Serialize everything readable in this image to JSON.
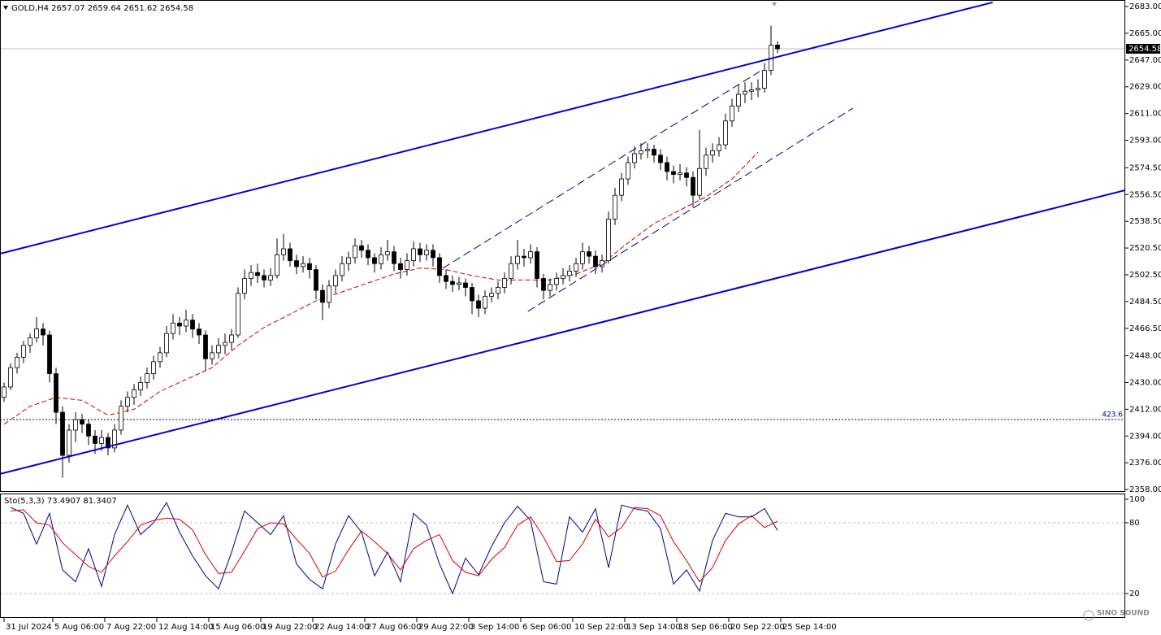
{
  "chart_data": [
    {
      "type": "candlestick",
      "symbol": "GOLD,H4",
      "watermark": "SINO SOUND",
      "bull_color": "#ffffff",
      "bear_color": "#000000",
      "wick_color": "#000000",
      "xlim": [
        -0.625,
        172.5
      ],
      "xticks": [
        {
          "value": 0,
          "label": "31 Jul 2024"
        },
        {
          "value": 7.5,
          "label": "5 Aug 06:00"
        },
        {
          "value": 15.5,
          "label": "7 Aug 22:00"
        },
        {
          "value": 23.5,
          "label": "12 Aug 14:00"
        },
        {
          "value": 31.5,
          "label": "15 Aug 06:00"
        },
        {
          "value": 39.5,
          "label": "19 Aug 22:00"
        },
        {
          "value": 47.5,
          "label": "22 Aug 14:00"
        },
        {
          "value": 55.5,
          "label": "27 Aug 06:00"
        },
        {
          "value": 63.5,
          "label": "29 Aug 22:00"
        },
        {
          "value": 71.5,
          "label": "3 Sep 14:00"
        },
        {
          "value": 79.5,
          "label": "6 Sep 06:00"
        },
        {
          "value": 87.5,
          "label": "10 Sep 22:00"
        },
        {
          "value": 95.5,
          "label": "13 Sep 14:00"
        },
        {
          "value": 103.5,
          "label": "18 Sep 06:00"
        },
        {
          "value": 111.5,
          "label": "20 Sep 22:00"
        },
        {
          "value": 119.5,
          "label": "25 Sep 14:00"
        }
      ],
      "ylim": [
        2356.4,
        2687.4
      ],
      "yticks": [
        {
          "value": 2683,
          "label": "2683.00"
        },
        {
          "value": 2665,
          "label": "2665.00"
        },
        {
          "value": 2647,
          "label": "2647.00"
        },
        {
          "value": 2629,
          "label": "2629.00"
        },
        {
          "value": 2611,
          "label": "2611.00"
        },
        {
          "value": 2593,
          "label": "2593.00"
        },
        {
          "value": 2574.5,
          "label": "2574.50"
        },
        {
          "value": 2556.5,
          "label": "2556.50"
        },
        {
          "value": 2538.5,
          "label": "2538.50"
        },
        {
          "value": 2520.5,
          "label": "2520.50"
        },
        {
          "value": 2502.5,
          "label": "2502.50"
        },
        {
          "value": 2484.5,
          "label": "2484.50"
        },
        {
          "value": 2466.5,
          "label": "2466.50"
        },
        {
          "value": 2448,
          "label": "2448.00"
        },
        {
          "value": 2430,
          "label": "2430.00"
        },
        {
          "value": 2412,
          "label": "2412.00"
        },
        {
          "value": 2394,
          "label": "2394.00"
        },
        {
          "value": 2376,
          "label": "2376.00"
        },
        {
          "value": 2358,
          "label": "2358.00"
        }
      ],
      "candles": [
        [
          2420,
          2430,
          2417,
          2427
        ],
        [
          2427,
          2443,
          2425,
          2440
        ],
        [
          2440,
          2450,
          2436,
          2447
        ],
        [
          2447,
          2458,
          2443,
          2455
        ],
        [
          2455,
          2463,
          2450,
          2460
        ],
        [
          2460,
          2474,
          2457,
          2466
        ],
        [
          2466,
          2470,
          2455,
          2462
        ],
        [
          2462,
          2465,
          2430,
          2436
        ],
        [
          2436,
          2440,
          2402,
          2410
        ],
        [
          2410,
          2414,
          2366,
          2381
        ],
        [
          2381,
          2402,
          2376,
          2398
        ],
        [
          2398,
          2410,
          2390,
          2405
        ],
        [
          2405,
          2409,
          2396,
          2402
        ],
        [
          2402,
          2405,
          2388,
          2394
        ],
        [
          2394,
          2398,
          2382,
          2389
        ],
        [
          2389,
          2398,
          2384,
          2393
        ],
        [
          2393,
          2396,
          2381,
          2386
        ],
        [
          2386,
          2402,
          2383,
          2398
        ],
        [
          2398,
          2418,
          2395,
          2414
        ],
        [
          2414,
          2424,
          2410,
          2420
        ],
        [
          2420,
          2429,
          2415,
          2425
        ],
        [
          2425,
          2434,
          2421,
          2430
        ],
        [
          2430,
          2440,
          2426,
          2436
        ],
        [
          2436,
          2448,
          2432,
          2444
        ],
        [
          2444,
          2454,
          2440,
          2450
        ],
        [
          2450,
          2468,
          2447,
          2463
        ],
        [
          2463,
          2476,
          2459,
          2470
        ],
        [
          2470,
          2474,
          2462,
          2468
        ],
        [
          2468,
          2479,
          2464,
          2472
        ],
        [
          2472,
          2476,
          2460,
          2466
        ],
        [
          2466,
          2470,
          2456,
          2462
        ],
        [
          2462,
          2465,
          2438,
          2446
        ],
        [
          2446,
          2455,
          2442,
          2450
        ],
        [
          2450,
          2460,
          2446,
          2455
        ],
        [
          2455,
          2463,
          2449,
          2457
        ],
        [
          2457,
          2466,
          2452,
          2462
        ],
        [
          2462,
          2494,
          2460,
          2490
        ],
        [
          2490,
          2506,
          2486,
          2500
        ],
        [
          2500,
          2509,
          2495,
          2504
        ],
        [
          2504,
          2510,
          2497,
          2502
        ],
        [
          2502,
          2506,
          2494,
          2499
        ],
        [
          2499,
          2507,
          2495,
          2502
        ],
        [
          2502,
          2527,
          2500,
          2516
        ],
        [
          2516,
          2530,
          2512,
          2520
        ],
        [
          2520,
          2524,
          2508,
          2512
        ],
        [
          2512,
          2516,
          2503,
          2508
        ],
        [
          2508,
          2515,
          2504,
          2510
        ],
        [
          2510,
          2514,
          2500,
          2506
        ],
        [
          2506,
          2509,
          2486,
          2492
        ],
        [
          2492,
          2496,
          2472,
          2484
        ],
        [
          2484,
          2499,
          2480,
          2495
        ],
        [
          2495,
          2506,
          2490,
          2502
        ],
        [
          2502,
          2515,
          2498,
          2510
        ],
        [
          2510,
          2518,
          2505,
          2514
        ],
        [
          2514,
          2527,
          2510,
          2522
        ],
        [
          2522,
          2526,
          2514,
          2519
        ],
        [
          2519,
          2523,
          2509,
          2514
        ],
        [
          2514,
          2517,
          2504,
          2510
        ],
        [
          2510,
          2521,
          2506,
          2516
        ],
        [
          2516,
          2526,
          2512,
          2518
        ],
        [
          2518,
          2522,
          2505,
          2510
        ],
        [
          2510,
          2514,
          2500,
          2506
        ],
        [
          2506,
          2517,
          2502,
          2512
        ],
        [
          2512,
          2525,
          2508,
          2520
        ],
        [
          2520,
          2524,
          2511,
          2516
        ],
        [
          2516,
          2523,
          2512,
          2519
        ],
        [
          2519,
          2523,
          2508,
          2514
        ],
        [
          2514,
          2517,
          2497,
          2502
        ],
        [
          2502,
          2506,
          2493,
          2498
        ],
        [
          2498,
          2502,
          2491,
          2496
        ],
        [
          2496,
          2501,
          2492,
          2497
        ],
        [
          2497,
          2500,
          2488,
          2494
        ],
        [
          2494,
          2497,
          2476,
          2485
        ],
        [
          2485,
          2489,
          2474,
          2480
        ],
        [
          2480,
          2492,
          2476,
          2488
        ],
        [
          2488,
          2494,
          2484,
          2490
        ],
        [
          2490,
          2498,
          2486,
          2494
        ],
        [
          2494,
          2504,
          2490,
          2500
        ],
        [
          2500,
          2515,
          2496,
          2510
        ],
        [
          2510,
          2526,
          2506,
          2515
        ],
        [
          2515,
          2520,
          2508,
          2514
        ],
        [
          2514,
          2523,
          2510,
          2518
        ],
        [
          2518,
          2521,
          2494,
          2500
        ],
        [
          2500,
          2503,
          2486,
          2492
        ],
        [
          2492,
          2500,
          2488,
          2496
        ],
        [
          2496,
          2504,
          2492,
          2500
        ],
        [
          2500,
          2507,
          2496,
          2502
        ],
        [
          2502,
          2509,
          2498,
          2505
        ],
        [
          2505,
          2514,
          2501,
          2510
        ],
        [
          2510,
          2524,
          2506,
          2518
        ],
        [
          2518,
          2522,
          2510,
          2515
        ],
        [
          2515,
          2519,
          2503,
          2508
        ],
        [
          2508,
          2516,
          2504,
          2512
        ],
        [
          2512,
          2545,
          2510,
          2540
        ],
        [
          2540,
          2561,
          2536,
          2556
        ],
        [
          2556,
          2571,
          2552,
          2567
        ],
        [
          2567,
          2582,
          2563,
          2578
        ],
        [
          2578,
          2589,
          2574,
          2584
        ],
        [
          2584,
          2591,
          2580,
          2586
        ],
        [
          2586,
          2591,
          2581,
          2587
        ],
        [
          2587,
          2590,
          2578,
          2583
        ],
        [
          2583,
          2587,
          2573,
          2578
        ],
        [
          2578,
          2582,
          2566,
          2572
        ],
        [
          2572,
          2576,
          2564,
          2570
        ],
        [
          2570,
          2577,
          2566,
          2571
        ],
        [
          2571,
          2575,
          2562,
          2568
        ],
        [
          2568,
          2572,
          2548,
          2556
        ],
        [
          2556,
          2600,
          2553,
          2574
        ],
        [
          2574,
          2588,
          2569,
          2583
        ],
        [
          2583,
          2591,
          2578,
          2586
        ],
        [
          2586,
          2595,
          2582,
          2590
        ],
        [
          2590,
          2611,
          2587,
          2606
        ],
        [
          2606,
          2621,
          2602,
          2616
        ],
        [
          2616,
          2630,
          2612,
          2624
        ],
        [
          2624,
          2632,
          2618,
          2626
        ],
        [
          2626,
          2632,
          2620,
          2627
        ],
        [
          2627,
          2634,
          2622,
          2628
        ],
        [
          2628,
          2645,
          2625,
          2640
        ],
        [
          2640,
          2670,
          2637,
          2657
        ],
        [
          2657.07,
          2659.64,
          2651.62,
          2654.58
        ]
      ],
      "ma_color": "#cc0000",
      "ma_x": [
        0,
        4,
        8,
        12,
        16,
        20,
        24,
        28,
        32,
        36,
        40,
        44,
        48,
        52,
        56,
        60,
        64,
        68,
        72,
        76,
        80,
        84,
        88,
        92,
        96,
        100,
        104,
        108,
        112,
        116
      ],
      "ma_values": [
        2402,
        2414,
        2420,
        2418,
        2408,
        2412,
        2424,
        2432,
        2440,
        2455,
        2467,
        2476,
        2485,
        2491,
        2497,
        2503,
        2507,
        2506,
        2502,
        2499,
        2499,
        2499,
        2503,
        2510,
        2524,
        2537,
        2546,
        2555,
        2567,
        2585
      ],
      "trendlines": [
        {
          "from": [
            -0.625,
            2516.7
          ],
          "to": [
            152.1,
            2685.8
          ],
          "color": "#0000cc",
          "dashed": false
        },
        {
          "from": [
            -0.625,
            2368.5
          ],
          "to": [
            172.5,
            2559.4
          ],
          "color": "#0000cc",
          "dashed": false
        },
        {
          "from": [
            67.5,
            2506.9
          ],
          "to": [
            116.25,
            2639.3
          ],
          "color": "#000080",
          "dashed": true
        },
        {
          "from": [
            80.6,
            2477.9
          ],
          "to": [
            130.6,
            2614.6
          ],
          "color": "#000080",
          "dashed": true
        }
      ],
      "level": {
        "price": 2405.1,
        "text": "423.6",
        "color": "#000080"
      }
    },
    {
      "type": "stochastic",
      "title": "Sto(5,3,3)",
      "ylim": [
        -0.7,
        104.8
      ],
      "yticks": [
        100,
        80,
        20
      ],
      "levels": [
        80,
        20
      ],
      "x": [
        1,
        3,
        5,
        7,
        9,
        11,
        13,
        15,
        17,
        19,
        21,
        23,
        25,
        27,
        29,
        31,
        33,
        35,
        37,
        39,
        41,
        43,
        45,
        47,
        49,
        51,
        53,
        55,
        57,
        59,
        61,
        63,
        65,
        67,
        69,
        71,
        73,
        75,
        77,
        79,
        81,
        83,
        85,
        87,
        89,
        91,
        93,
        95,
        97,
        99,
        101,
        103,
        105,
        107,
        109,
        111,
        113,
        115,
        117,
        119
      ],
      "series": [
        {
          "color": "#00008b",
          "values": [
            93,
            88,
            62,
            88,
            40,
            30,
            58,
            26,
            70,
            95,
            70,
            80,
            97,
            72,
            52,
            35,
            24,
            55,
            90,
            80,
            70,
            86,
            45,
            32,
            24,
            62,
            86,
            72,
            35,
            55,
            30,
            88,
            78,
            45,
            20,
            50,
            36,
            60,
            80,
            94,
            82,
            30,
            28,
            85,
            72,
            92,
            42,
            95,
            92,
            90,
            75,
            28,
            40,
            22,
            65,
            88,
            85,
            85,
            92,
            73.4907
          ]
        },
        {
          "color": "#dd0000",
          "values": [
            90,
            91,
            80,
            78,
            63,
            53,
            43,
            38,
            52,
            64,
            78,
            82,
            84,
            83,
            74,
            53,
            37,
            38,
            56,
            75,
            80,
            79,
            66,
            54,
            34,
            39,
            57,
            73,
            64,
            54,
            40,
            58,
            65,
            70,
            48,
            38,
            35,
            49,
            59,
            78,
            85,
            68,
            47,
            48,
            62,
            83,
            68,
            76,
            93,
            92,
            86,
            64,
            48,
            30,
            42,
            65,
            79,
            86,
            76,
            81.3407
          ]
        }
      ]
    }
  ]
}
